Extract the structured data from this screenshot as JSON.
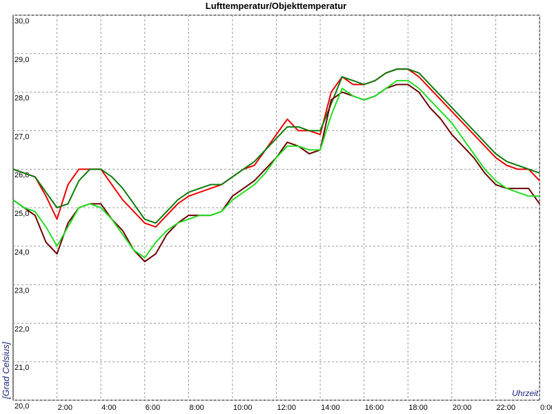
{
  "chart_data": {
    "type": "line",
    "title": "Lufttemperatur/Objekttemperatur",
    "y_label": "[Grad Celsius]",
    "x_label": "Uhrzeit",
    "grid": true,
    "xlim": [
      0,
      24
    ],
    "ylim": [
      20,
      30
    ],
    "xticks": [
      {
        "value": 2,
        "label": "2:00"
      },
      {
        "value": 4,
        "label": "4:00"
      },
      {
        "value": 6,
        "label": "6:00"
      },
      {
        "value": 8,
        "label": "8:00"
      },
      {
        "value": 10,
        "label": "10:00"
      },
      {
        "value": 12,
        "label": "12:00"
      },
      {
        "value": 14,
        "label": "14:00"
      },
      {
        "value": 16,
        "label": "16:00"
      },
      {
        "value": 18,
        "label": "18:00"
      },
      {
        "value": 20,
        "label": "20:00"
      },
      {
        "value": 22,
        "label": "22:00"
      },
      {
        "value": 24,
        "label": "0:00"
      }
    ],
    "yticks": [
      {
        "value": 20,
        "label": "20,0"
      },
      {
        "value": 21,
        "label": "21,0"
      },
      {
        "value": 22,
        "label": "22,0"
      },
      {
        "value": 23,
        "label": "23,0"
      },
      {
        "value": 24,
        "label": "24,0"
      },
      {
        "value": 25,
        "label": "25,0"
      },
      {
        "value": 26,
        "label": "26,0"
      },
      {
        "value": 27,
        "label": "27,0"
      },
      {
        "value": 28,
        "label": "28,0"
      },
      {
        "value": 29,
        "label": "29,0"
      },
      {
        "value": 30,
        "label": "30,0"
      }
    ],
    "x": [
      0,
      0.5,
      1,
      1.5,
      2,
      2.5,
      3,
      3.5,
      4,
      4.5,
      5,
      5.5,
      6,
      6.5,
      7,
      7.5,
      8,
      8.5,
      9,
      9.5,
      10,
      10.5,
      11,
      11.5,
      12,
      12.5,
      13,
      13.5,
      14,
      14.5,
      15,
      15.5,
      16,
      16.5,
      17,
      17.5,
      18,
      18.5,
      19,
      19.5,
      20,
      20.5,
      21,
      21.5,
      22,
      22.5,
      23,
      23.5,
      24
    ],
    "series": [
      {
        "color": "#ee0000",
        "values": [
          26.0,
          25.9,
          25.8,
          25.3,
          24.7,
          25.6,
          26.0,
          26.0,
          26.0,
          25.6,
          25.2,
          24.9,
          24.6,
          24.5,
          24.8,
          25.1,
          25.3,
          25.4,
          25.5,
          25.6,
          25.8,
          26.0,
          26.1,
          26.5,
          26.9,
          27.3,
          27.0,
          27.0,
          26.9,
          28.0,
          28.4,
          28.2,
          28.2,
          28.3,
          28.5,
          28.6,
          28.6,
          28.4,
          28.1,
          27.8,
          27.5,
          27.2,
          26.9,
          26.6,
          26.3,
          26.1,
          26.0,
          26.0,
          25.7
        ]
      },
      {
        "color": "#0b7a0b",
        "values": [
          26.0,
          25.9,
          25.8,
          25.4,
          25.0,
          25.1,
          25.7,
          26.0,
          26.0,
          25.8,
          25.5,
          25.1,
          24.7,
          24.6,
          24.9,
          25.2,
          25.4,
          25.5,
          25.6,
          25.6,
          25.8,
          26.0,
          26.2,
          26.5,
          26.8,
          27.1,
          27.1,
          27.0,
          27.0,
          27.7,
          28.4,
          28.3,
          28.2,
          28.3,
          28.5,
          28.6,
          28.6,
          28.5,
          28.2,
          27.9,
          27.6,
          27.3,
          27.0,
          26.7,
          26.4,
          26.2,
          26.1,
          26.0,
          25.9
        ]
      },
      {
        "color": "#6b0000",
        "values": [
          25.2,
          25.0,
          24.8,
          24.1,
          23.8,
          24.6,
          25.0,
          25.1,
          25.1,
          24.7,
          24.4,
          23.9,
          23.6,
          23.8,
          24.3,
          24.6,
          24.8,
          24.8,
          24.8,
          24.9,
          25.3,
          25.5,
          25.7,
          26.0,
          26.3,
          26.7,
          26.6,
          26.4,
          26.5,
          27.8,
          28.0,
          27.9,
          27.8,
          27.9,
          28.1,
          28.2,
          28.2,
          28.0,
          27.6,
          27.3,
          26.9,
          26.6,
          26.3,
          25.9,
          25.6,
          25.5,
          25.5,
          25.5,
          25.1
        ]
      },
      {
        "color": "#22dd22",
        "values": [
          25.2,
          25.0,
          24.9,
          24.5,
          24.0,
          24.5,
          25.0,
          25.1,
          25.0,
          24.7,
          24.3,
          23.9,
          23.7,
          24.1,
          24.4,
          24.6,
          24.7,
          24.8,
          24.8,
          24.9,
          25.2,
          25.4,
          25.6,
          25.9,
          26.3,
          26.6,
          26.6,
          26.5,
          26.5,
          27.4,
          28.1,
          27.9,
          27.8,
          27.9,
          28.1,
          28.3,
          28.3,
          28.1,
          27.8,
          27.5,
          27.2,
          26.8,
          26.4,
          26.0,
          25.7,
          25.5,
          25.4,
          25.3,
          25.3
        ]
      }
    ]
  }
}
